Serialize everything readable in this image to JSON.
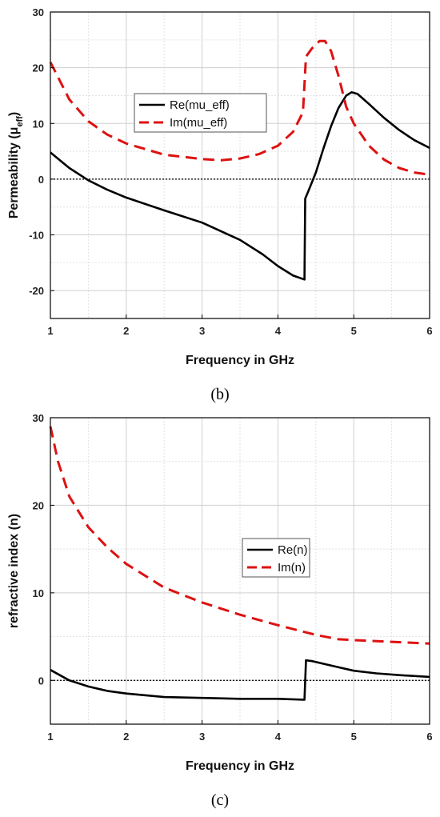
{
  "chart_data": [
    {
      "type": "line",
      "caption": "(b)",
      "xlabel": "Frequency in GHz",
      "ylabel": "Permeability (μ",
      "ylabel_sub": "eff",
      "ylabel_close": ")",
      "xlim": [
        1,
        6
      ],
      "ylim": [
        -25,
        30
      ],
      "xticks": [
        1,
        2,
        3,
        4,
        5,
        6
      ],
      "yticks": [
        -20,
        -10,
        0,
        10,
        20,
        30
      ],
      "grid": true,
      "zero_line": true,
      "legend_position": "upper-middle",
      "series": [
        {
          "name": "Re(mu_eff)",
          "style": "solid",
          "color": "#000000",
          "x": [
            1.0,
            1.25,
            1.5,
            1.75,
            2.0,
            2.5,
            3.0,
            3.5,
            3.8,
            4.0,
            4.2,
            4.35,
            4.36,
            4.4,
            4.5,
            4.6,
            4.7,
            4.8,
            4.9,
            4.97,
            5.05,
            5.2,
            5.4,
            5.6,
            5.8,
            6.0
          ],
          "y": [
            4.8,
            2.0,
            -0.2,
            -1.9,
            -3.3,
            -5.6,
            -7.8,
            -10.9,
            -13.5,
            -15.6,
            -17.3,
            -18.0,
            -3.5,
            -2.2,
            1.2,
            5.5,
            9.5,
            12.8,
            15.0,
            15.6,
            15.3,
            13.5,
            11.0,
            8.8,
            7.0,
            5.6
          ]
        },
        {
          "name": "Im(mu_eff)",
          "style": "dashed",
          "color": "#dd1111",
          "x": [
            1.0,
            1.25,
            1.5,
            1.75,
            2.0,
            2.5,
            3.0,
            3.25,
            3.5,
            3.75,
            4.0,
            4.2,
            4.33,
            4.37,
            4.45,
            4.55,
            4.62,
            4.7,
            4.8,
            4.9,
            5.0,
            5.2,
            5.4,
            5.6,
            5.8,
            6.0
          ],
          "y": [
            21.0,
            14.3,
            10.4,
            8.0,
            6.4,
            4.4,
            3.6,
            3.4,
            3.7,
            4.5,
            6.0,
            8.5,
            12.0,
            22.0,
            23.5,
            24.8,
            24.8,
            23.0,
            18.5,
            13.0,
            10.0,
            6.0,
            3.5,
            2.0,
            1.2,
            0.8
          ]
        }
      ]
    },
    {
      "type": "line",
      "caption": "(c)",
      "xlabel": "Frequency in GHz",
      "ylabel": "refractive index (n)",
      "xlim": [
        1,
        6
      ],
      "ylim": [
        -5,
        30
      ],
      "xticks": [
        1,
        2,
        3,
        4,
        5,
        6
      ],
      "yticks": [
        0,
        10,
        20,
        30
      ],
      "grid": true,
      "zero_line": true,
      "legend_position": "center-right",
      "series": [
        {
          "name": "Re(n)",
          "style": "solid",
          "color": "#000000",
          "x": [
            1.0,
            1.25,
            1.5,
            1.75,
            2.0,
            2.5,
            3.0,
            3.5,
            4.0,
            4.35,
            4.37,
            4.45,
            4.6,
            4.8,
            5.0,
            5.3,
            5.6,
            6.0
          ],
          "y": [
            1.2,
            0.0,
            -0.7,
            -1.2,
            -1.5,
            -1.9,
            -2.0,
            -2.1,
            -2.1,
            -2.2,
            2.3,
            2.2,
            1.9,
            1.5,
            1.1,
            0.8,
            0.6,
            0.4
          ]
        },
        {
          "name": "Im(n)",
          "style": "dashed",
          "color": "#dd1111",
          "x": [
            1.0,
            1.1,
            1.25,
            1.5,
            1.75,
            2.0,
            2.5,
            3.0,
            3.5,
            4.0,
            4.5,
            4.8,
            5.0,
            5.5,
            6.0
          ],
          "y": [
            29.0,
            25.0,
            21.0,
            17.5,
            15.2,
            13.3,
            10.6,
            8.9,
            7.5,
            6.3,
            5.2,
            4.7,
            4.6,
            4.4,
            4.2
          ]
        }
      ]
    }
  ]
}
